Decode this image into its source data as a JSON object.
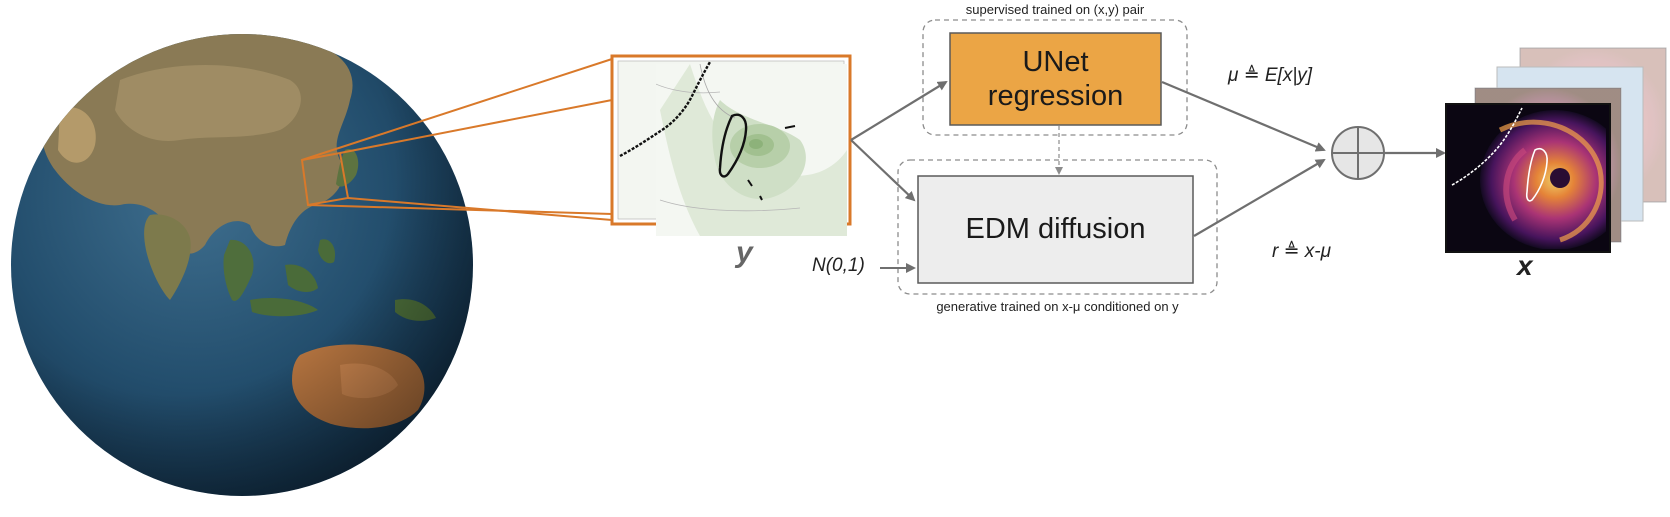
{
  "colors": {
    "unet_fill": "#EBA545",
    "edm_fill": "#EDEDED",
    "orange_frame": "#D9792A",
    "arrow": "#6F6F6F",
    "dashed": "#8C8C8C"
  },
  "icons": {
    "globe": "earth-globe-icon",
    "sum": "circle-plus-icon",
    "input_map": "taiwan-coarse-map-icon",
    "output_stack": "taiwan-radar-stack-icon"
  },
  "diagram": {
    "supervised_caption": "supervised trained on (x,y) pair",
    "generative_caption": "generative trained on x-μ conditioned on y",
    "unet": {
      "line1": "UNet",
      "line2": "regression"
    },
    "edm": {
      "label": "EDM diffusion"
    },
    "input_label": "y",
    "noise_label": "N(0,1)",
    "mu_label": "μ ≜ E[x|y]",
    "r_label": "r ≜ x-μ",
    "output_label": "x"
  }
}
